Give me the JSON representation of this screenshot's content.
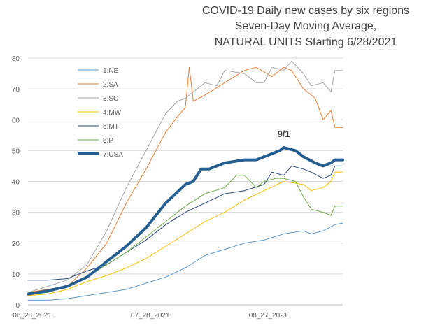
{
  "chart_data": {
    "type": "line",
    "title_lines": [
      "COVID-19 Daily new cases by six regions",
      "Seven-Day Moving Average,",
      "NATURAL UNITS Starting 6/28/2021"
    ],
    "title_colors": [
      "#404040",
      "#404040",
      "#e00000"
    ],
    "ylim": [
      0,
      80
    ],
    "y_ticks": [
      "0",
      "10",
      "20",
      "30",
      "40",
      "50",
      "60",
      "70",
      "80"
    ],
    "x_tick_labels": [
      {
        "label": "06_28_2021",
        "day": 0
      },
      {
        "label": "07_28_2021",
        "day": 30
      },
      {
        "label": "08_27_2021",
        "day": 60
      }
    ],
    "xlim_days": [
      0,
      80
    ],
    "grid": true,
    "legend_position": "upper-left",
    "annotation": {
      "text": "9/1",
      "day": 65,
      "value": 53
    },
    "series": [
      {
        "name": "1:NE",
        "color": "#5b9bd5",
        "width": 1,
        "points": [
          [
            0,
            1.5
          ],
          [
            5,
            1.5
          ],
          [
            10,
            2
          ],
          [
            15,
            3
          ],
          [
            20,
            4
          ],
          [
            25,
            5
          ],
          [
            30,
            7
          ],
          [
            35,
            9
          ],
          [
            40,
            12
          ],
          [
            45,
            16
          ],
          [
            50,
            18
          ],
          [
            55,
            20
          ],
          [
            60,
            21
          ],
          [
            65,
            23
          ],
          [
            70,
            24
          ],
          [
            72,
            23
          ],
          [
            75,
            24
          ],
          [
            78,
            26
          ],
          [
            80,
            26.5
          ]
        ]
      },
      {
        "name": "2:SA",
        "color": "#ed7d31",
        "width": 1,
        "points": [
          [
            0,
            4
          ],
          [
            5,
            5
          ],
          [
            10,
            6
          ],
          [
            15,
            12
          ],
          [
            20,
            20
          ],
          [
            25,
            33
          ],
          [
            30,
            44
          ],
          [
            35,
            56
          ],
          [
            38,
            61
          ],
          [
            40,
            64
          ],
          [
            41,
            77
          ],
          [
            42,
            66
          ],
          [
            45,
            68
          ],
          [
            50,
            72
          ],
          [
            55,
            76
          ],
          [
            58,
            77
          ],
          [
            62,
            74
          ],
          [
            65,
            77
          ],
          [
            67,
            76
          ],
          [
            70,
            70
          ],
          [
            73,
            67
          ],
          [
            75,
            60
          ],
          [
            77,
            63
          ],
          [
            78,
            57.5
          ],
          [
            80,
            57.5
          ]
        ]
      },
      {
        "name": "3:SC",
        "color": "#a5a5a5",
        "width": 1,
        "points": [
          [
            0,
            4
          ],
          [
            5,
            6
          ],
          [
            10,
            8
          ],
          [
            15,
            13
          ],
          [
            20,
            24
          ],
          [
            25,
            38
          ],
          [
            30,
            50
          ],
          [
            35,
            62
          ],
          [
            38,
            66
          ],
          [
            40,
            67
          ],
          [
            45,
            72
          ],
          [
            48,
            71
          ],
          [
            50,
            76
          ],
          [
            55,
            75
          ],
          [
            58,
            72
          ],
          [
            60,
            72
          ],
          [
            62,
            77
          ],
          [
            65,
            76
          ],
          [
            67,
            79
          ],
          [
            70,
            75
          ],
          [
            72,
            71
          ],
          [
            75,
            72
          ],
          [
            77,
            69
          ],
          [
            78,
            76
          ],
          [
            80,
            76
          ]
        ]
      },
      {
        "name": "4:MW",
        "color": "#ffc000",
        "width": 1,
        "points": [
          [
            0,
            3
          ],
          [
            5,
            3.5
          ],
          [
            10,
            5
          ],
          [
            15,
            7.5
          ],
          [
            20,
            9.5
          ],
          [
            25,
            12
          ],
          [
            30,
            15
          ],
          [
            35,
            19
          ],
          [
            40,
            23
          ],
          [
            45,
            27
          ],
          [
            50,
            30
          ],
          [
            55,
            34
          ],
          [
            60,
            37
          ],
          [
            65,
            40
          ],
          [
            70,
            39
          ],
          [
            72,
            37
          ],
          [
            75,
            38
          ],
          [
            77,
            40
          ],
          [
            78,
            43
          ],
          [
            80,
            43
          ]
        ]
      },
      {
        "name": "5:MT",
        "color": "#264478",
        "width": 1,
        "points": [
          [
            0,
            8
          ],
          [
            5,
            8
          ],
          [
            10,
            8.5
          ],
          [
            15,
            11
          ],
          [
            20,
            13
          ],
          [
            25,
            17
          ],
          [
            30,
            21
          ],
          [
            35,
            26
          ],
          [
            40,
            30
          ],
          [
            45,
            33
          ],
          [
            50,
            36
          ],
          [
            55,
            37
          ],
          [
            60,
            39
          ],
          [
            62,
            43
          ],
          [
            65,
            42
          ],
          [
            67,
            45
          ],
          [
            70,
            44
          ],
          [
            72,
            43
          ],
          [
            75,
            41
          ],
          [
            77,
            42
          ],
          [
            78,
            45
          ],
          [
            80,
            45
          ]
        ]
      },
      {
        "name": "6:P",
        "color": "#70ad47",
        "width": 1,
        "points": [
          [
            0,
            3.5
          ],
          [
            5,
            4
          ],
          [
            10,
            6
          ],
          [
            15,
            9
          ],
          [
            20,
            13
          ],
          [
            25,
            17
          ],
          [
            30,
            22
          ],
          [
            35,
            27
          ],
          [
            40,
            32
          ],
          [
            45,
            36
          ],
          [
            50,
            38
          ],
          [
            53,
            42
          ],
          [
            55,
            42
          ],
          [
            58,
            38
          ],
          [
            60,
            40
          ],
          [
            63,
            41
          ],
          [
            65,
            41
          ],
          [
            68,
            40
          ],
          [
            70,
            35
          ],
          [
            72,
            31
          ],
          [
            75,
            30
          ],
          [
            77,
            29
          ],
          [
            78,
            32
          ],
          [
            80,
            32
          ]
        ]
      },
      {
        "name": "7:USA",
        "color": "#255e91",
        "width": 4,
        "points": [
          [
            0,
            3.5
          ],
          [
            5,
            4.5
          ],
          [
            10,
            6
          ],
          [
            15,
            9
          ],
          [
            20,
            14
          ],
          [
            25,
            19
          ],
          [
            30,
            25
          ],
          [
            35,
            33
          ],
          [
            40,
            39
          ],
          [
            42,
            40
          ],
          [
            44,
            44
          ],
          [
            46,
            44
          ],
          [
            50,
            46
          ],
          [
            55,
            47
          ],
          [
            58,
            47
          ],
          [
            62,
            49
          ],
          [
            64,
            50
          ],
          [
            65,
            51
          ],
          [
            68,
            50
          ],
          [
            70,
            48
          ],
          [
            73,
            46
          ],
          [
            75,
            45
          ],
          [
            77,
            46
          ],
          [
            78,
            47
          ],
          [
            80,
            47
          ]
        ]
      }
    ]
  }
}
